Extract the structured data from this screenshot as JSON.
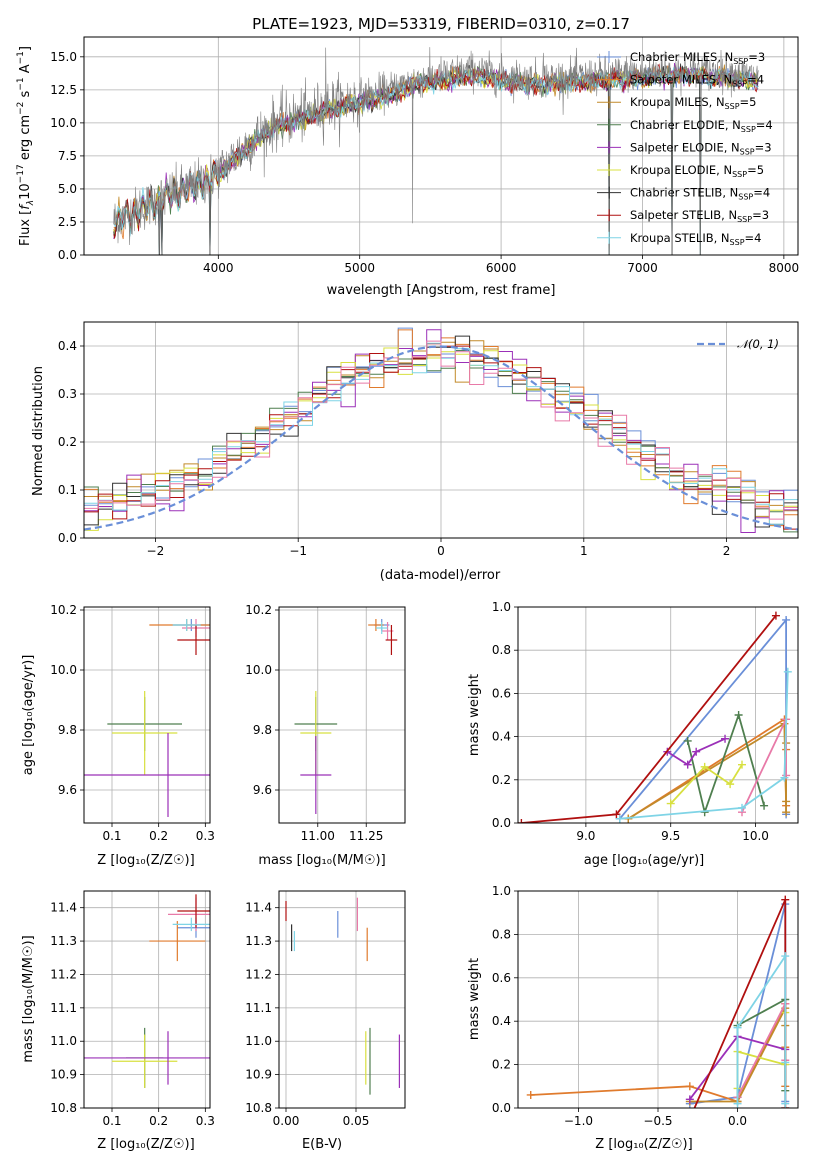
{
  "title": "PLATE=1923, MJD=53319, FIBERID=0310, z=0.17",
  "colors": {
    "series": [
      "#6a8fd8",
      "#e07b2d",
      "#c28a2a",
      "#4f7f4f",
      "#9b30b8",
      "#d8e040",
      "#333333",
      "#b01010",
      "#7fd4e6"
    ],
    "extra_pink": "#e87aa8",
    "data_gray": "#808080",
    "grid": "#b0b0b0",
    "normal_curve": "#6a8fd8"
  },
  "chart_data": [
    {
      "type": "line",
      "name": "spectrum",
      "xlabel": "wavelength [Angstrom, rest frame]",
      "ylabel_parts": [
        "Flux [",
        "f",
        "λ",
        "10",
        "−17",
        " erg cm",
        "−2",
        " s",
        "−1",
        " A",
        "−1",
        "]"
      ],
      "xlim": [
        3050,
        8100
      ],
      "ylim": [
        0,
        16.5
      ],
      "xticks": [
        4000,
        5000,
        6000,
        7000,
        8000
      ],
      "yticks": [
        "0.0",
        "2.5",
        "5.0",
        "7.5",
        "10.0",
        "12.5",
        "15.0"
      ],
      "ytick_values": [
        0,
        2.5,
        5,
        7.5,
        10,
        12.5,
        15
      ],
      "x_range": [
        3260,
        7820
      ],
      "anchors_x": [
        3260,
        3350,
        3500,
        3700,
        3900,
        4000,
        4200,
        4400,
        4600,
        4800,
        5000,
        5200,
        5400,
        5600,
        5800,
        6000,
        6200,
        6400,
        6600,
        6800,
        7000,
        7200,
        7400,
        7600,
        7820
      ],
      "anchors_y": [
        2.6,
        3.0,
        3.8,
        4.8,
        5.6,
        6.3,
        8.3,
        10.0,
        10.6,
        11.4,
        11.9,
        12.4,
        13.3,
        13.6,
        14.0,
        13.6,
        13.3,
        13.4,
        13.5,
        13.7,
        13.8,
        14.0,
        14.0,
        13.8,
        13.5
      ],
      "spikes": [
        [
          3585,
          0
        ],
        [
          3600,
          0
        ],
        [
          3940,
          0
        ],
        [
          4760,
          15.7
        ],
        [
          5375,
          2.4
        ],
        [
          6300,
          15.3
        ],
        [
          6765,
          0
        ],
        [
          7210,
          0
        ],
        [
          7410,
          0
        ]
      ],
      "legend": [
        {
          "label": "Chabrier MILES, N",
          "sub": "SSP",
          "suffix": "=3",
          "color": "#6a8fd8"
        },
        {
          "label": "Salpeter MILES, N",
          "sub": "SSP",
          "suffix": "=4",
          "color": "#e07b2d"
        },
        {
          "label": "Kroupa MILES, N",
          "sub": "SSP",
          "suffix": "=5",
          "color": "#c28a2a"
        },
        {
          "label": "Chabrier ELODIE, N",
          "sub": "SSP",
          "suffix": "=4",
          "color": "#4f7f4f"
        },
        {
          "label": "Salpeter ELODIE, N",
          "sub": "SSP",
          "suffix": "=3",
          "color": "#9b30b8"
        },
        {
          "label": "Kroupa ELODIE, N",
          "sub": "SSP",
          "suffix": "=5",
          "color": "#d8e040"
        },
        {
          "label": "Chabrier STELIB, N",
          "sub": "SSP",
          "suffix": "=4",
          "color": "#333333"
        },
        {
          "label": "Salpeter STELIB, N",
          "sub": "SSP",
          "suffix": "=3",
          "color": "#b01010"
        },
        {
          "label": "Kroupa STELIB, N",
          "sub": "SSP",
          "suffix": "=4",
          "color": "#7fd4e6"
        }
      ]
    },
    {
      "type": "histogram",
      "name": "residuals",
      "xlabel": "(data-model)/error",
      "ylabel": "Normed distribution",
      "xlim": [
        -2.5,
        2.5
      ],
      "ylim": [
        0,
        0.45
      ],
      "xticks": [
        -2,
        -1,
        0,
        1,
        2
      ],
      "xtick_labels": [
        "−2",
        "−1",
        "0",
        "1",
        "2"
      ],
      "yticks": [
        "0.0",
        "0.1",
        "0.2",
        "0.3",
        "0.4"
      ],
      "ytick_values": [
        0,
        0.1,
        0.2,
        0.3,
        0.4
      ],
      "bin_width": 0.1,
      "legend_label": "𝒩(0, 1)"
    },
    {
      "type": "scatter",
      "name": "age-vs-Z",
      "xlabel": "Z [log₁₀(Z/Z☉)]",
      "ylabel": "age  [log₁₀(age/yr)]",
      "xlim": [
        0.04,
        0.31
      ],
      "ylim": [
        9.49,
        10.21
      ],
      "xticks": [
        0.1,
        0.2,
        0.3
      ],
      "xtick_labels": [
        "0.1",
        "0.2",
        "0.3"
      ],
      "yticks": [
        9.6,
        9.8,
        10.0,
        10.2
      ],
      "ytick_labels": [
        "9.6",
        "9.8",
        "10.0",
        "10.2"
      ],
      "points": [
        {
          "x": 0.27,
          "y": 10.15,
          "xerr": 0.04,
          "yerr": 0.02,
          "color": "#6a8fd8"
        },
        {
          "x": 0.26,
          "y": 10.15,
          "xerr": 0.08,
          "yerr": 0.02,
          "color": "#e07b2d"
        },
        {
          "x": 0.28,
          "y": 10.14,
          "xerr": 0.03,
          "yerr": 0.03,
          "color": "#e87aa8"
        },
        {
          "x": 0.28,
          "y": 10.1,
          "xerr": 0.04,
          "yerr": 0.05,
          "color": "#b01010"
        },
        {
          "x": 0.26,
          "y": 10.15,
          "xerr": 0.03,
          "yerr": 0.02,
          "color": "#7fd4e6"
        },
        {
          "x": 0.17,
          "y": 9.82,
          "xerr": 0.08,
          "yerr": 0.09,
          "color": "#4f7f4f"
        },
        {
          "x": 0.17,
          "y": 9.79,
          "xerr": 0.07,
          "yerr": 0.14,
          "color": "#d8e040"
        },
        {
          "x": 0.22,
          "y": 9.65,
          "xerr": 0.18,
          "yerr": 0.14,
          "color": "#9b30b8"
        }
      ]
    },
    {
      "type": "scatter",
      "name": "age-vs-mass",
      "xlabel": "mass [log₁₀(M/M☉)]",
      "ylabel": "",
      "xlim": [
        10.8,
        11.45
      ],
      "ylim": [
        9.49,
        10.21
      ],
      "xticks": [
        11.0,
        11.25
      ],
      "xtick_labels": [
        "11.00",
        "11.25"
      ],
      "yticks": [
        9.6,
        9.8,
        10.0,
        10.2
      ],
      "ytick_labels": [
        "9.6",
        "9.8",
        "10.0",
        "10.2"
      ],
      "points": [
        {
          "x": 11.33,
          "y": 10.15,
          "xerr": 0.04,
          "yerr": 0.02,
          "color": "#6a8fd8"
        },
        {
          "x": 11.3,
          "y": 10.15,
          "xerr": 0.04,
          "yerr": 0.02,
          "color": "#e07b2d"
        },
        {
          "x": 11.36,
          "y": 10.13,
          "xerr": 0.03,
          "yerr": 0.03,
          "color": "#e87aa8"
        },
        {
          "x": 11.38,
          "y": 10.1,
          "xerr": 0.03,
          "yerr": 0.05,
          "color": "#b01010"
        },
        {
          "x": 11.33,
          "y": 10.14,
          "xerr": 0.03,
          "yerr": 0.02,
          "color": "#7fd4e6"
        },
        {
          "x": 10.99,
          "y": 9.82,
          "xerr": 0.11,
          "yerr": 0.09,
          "color": "#4f7f4f"
        },
        {
          "x": 10.99,
          "y": 9.79,
          "xerr": 0.08,
          "yerr": 0.14,
          "color": "#d8e040"
        },
        {
          "x": 10.99,
          "y": 9.65,
          "xerr": 0.08,
          "yerr": 0.13,
          "color": "#9b30b8"
        }
      ]
    },
    {
      "type": "line",
      "name": "mass-weight-vs-age",
      "xlabel": "age  [log₁₀(age/yr)]",
      "ylabel": "mass weight",
      "xlim": [
        8.6,
        10.25
      ],
      "ylim": [
        0,
        1.0
      ],
      "xticks": [
        9.0,
        9.5,
        10.0
      ],
      "xtick_labels": [
        "9.0",
        "9.5",
        "10.0"
      ],
      "yticks": [
        0,
        0.2,
        0.4,
        0.6,
        0.8,
        1.0
      ],
      "ytick_labels": [
        "0.0",
        "0.2",
        "0.4",
        "0.6",
        "0.8",
        "1.0"
      ],
      "series": [
        {
          "color": "#6a8fd8",
          "x": [
            9.2,
            10.18,
            10.18
          ],
          "y": [
            0.02,
            0.94,
            0.04
          ]
        },
        {
          "color": "#e07b2d",
          "x": [
            9.25,
            10.17,
            10.18,
            10.18
          ],
          "y": [
            0.02,
            0.48,
            0.08,
            0.34
          ]
        },
        {
          "color": "#c28a2a",
          "x": [
            9.25,
            10.17,
            10.18,
            10.18,
            10.18
          ],
          "y": [
            0.02,
            0.46,
            0.1,
            0.37,
            0.05
          ]
        },
        {
          "color": "#4f7f4f",
          "x": [
            9.6,
            9.7,
            9.9,
            10.05
          ],
          "y": [
            0.38,
            0.05,
            0.5,
            0.08
          ]
        },
        {
          "color": "#9b30b8",
          "x": [
            9.48,
            9.6,
            9.65,
            9.82
          ],
          "y": [
            0.33,
            0.27,
            0.33,
            0.39
          ]
        },
        {
          "color": "#d8e040",
          "x": [
            9.5,
            9.7,
            9.85,
            9.92
          ],
          "y": [
            0.09,
            0.26,
            0.18,
            0.27
          ]
        },
        {
          "color": "#e87aa8",
          "x": [
            9.92,
            10.18,
            10.18
          ],
          "y": [
            0.05,
            0.48,
            0.22
          ]
        },
        {
          "color": "#b01010",
          "x": [
            8.62,
            9.18,
            10.12
          ],
          "y": [
            0.0,
            0.04,
            0.96
          ]
        },
        {
          "color": "#7fd4e6",
          "x": [
            9.2,
            9.92,
            10.17,
            10.19
          ],
          "y": [
            0.02,
            0.07,
            0.21,
            0.7
          ]
        }
      ]
    },
    {
      "type": "scatter",
      "name": "mass-vs-Z",
      "xlabel": "Z [log₁₀(Z/Z☉)]",
      "ylabel": "mass [log₁₀(M/M☉)]",
      "xlim": [
        0.04,
        0.31
      ],
      "ylim": [
        10.8,
        11.45
      ],
      "xticks": [
        0.1,
        0.2,
        0.3
      ],
      "xtick_labels": [
        "0.1",
        "0.2",
        "0.3"
      ],
      "yticks": [
        10.8,
        10.9,
        11.0,
        11.1,
        11.2,
        11.3,
        11.4
      ],
      "ytick_labels": [
        "10.8",
        "10.9",
        "11.0",
        "11.1",
        "11.2",
        "11.3",
        "11.4"
      ],
      "points": [
        {
          "x": 0.28,
          "y": 11.34,
          "xerr": 0.04,
          "yerr": 0.03,
          "color": "#6a8fd8"
        },
        {
          "x": 0.24,
          "y": 11.3,
          "xerr": 0.06,
          "yerr": 0.06,
          "color": "#e07b2d"
        },
        {
          "x": 0.28,
          "y": 11.38,
          "xerr": 0.06,
          "yerr": 0.05,
          "color": "#e87aa8"
        },
        {
          "x": 0.28,
          "y": 11.39,
          "xerr": 0.04,
          "yerr": 0.05,
          "color": "#b01010"
        },
        {
          "x": 0.27,
          "y": 11.35,
          "xerr": 0.04,
          "yerr": 0.02,
          "color": "#7fd4e6"
        },
        {
          "x": 0.17,
          "y": 10.95,
          "xerr": 0.04,
          "yerr": 0.09,
          "color": "#4f7f4f"
        },
        {
          "x": 0.17,
          "y": 10.94,
          "xerr": 0.07,
          "yerr": 0.08,
          "color": "#d8e040"
        },
        {
          "x": 0.22,
          "y": 10.95,
          "xerr": 0.18,
          "yerr": 0.08,
          "color": "#9b30b8"
        }
      ]
    },
    {
      "type": "scatter",
      "name": "mass-vs-ebv",
      "xlabel": "E(B-V)",
      "ylabel": "",
      "xlim": [
        -0.005,
        0.085
      ],
      "ylim": [
        10.8,
        11.45
      ],
      "xticks": [
        0.0,
        0.05
      ],
      "xtick_labels": [
        "0.00",
        "0.05"
      ],
      "yticks": [
        10.8,
        10.9,
        11.0,
        11.1,
        11.2,
        11.3,
        11.4
      ],
      "ytick_labels": [
        "10.8",
        "10.9",
        "11.0",
        "11.1",
        "11.2",
        "11.3",
        "11.4"
      ],
      "points": [
        {
          "x": 0.0,
          "y": 11.39,
          "xerr": 0.0,
          "yerr": 0.03,
          "color": "#b01010"
        },
        {
          "x": 0.004,
          "y": 11.31,
          "xerr": 0.0,
          "yerr": 0.04,
          "color": "#333333"
        },
        {
          "x": 0.006,
          "y": 11.3,
          "xerr": 0.0,
          "yerr": 0.03,
          "color": "#7fd4e6"
        },
        {
          "x": 0.037,
          "y": 11.35,
          "xerr": 0.0,
          "yerr": 0.04,
          "color": "#6a8fd8"
        },
        {
          "x": 0.051,
          "y": 11.38,
          "xerr": 0.0,
          "yerr": 0.05,
          "color": "#e87aa8"
        },
        {
          "x": 0.058,
          "y": 11.29,
          "xerr": 0.0,
          "yerr": 0.05,
          "color": "#e07b2d"
        },
        {
          "x": 0.057,
          "y": 10.95,
          "xerr": 0.0,
          "yerr": 0.08,
          "color": "#d8e040"
        },
        {
          "x": 0.06,
          "y": 10.94,
          "xerr": 0.0,
          "yerr": 0.1,
          "color": "#4f7f4f"
        },
        {
          "x": 0.081,
          "y": 10.94,
          "xerr": 0.0,
          "yerr": 0.08,
          "color": "#9b30b8"
        }
      ]
    },
    {
      "type": "line",
      "name": "mass-weight-vs-Z",
      "xlabel": "Z [log₁₀(Z/Z☉)]",
      "ylabel": "mass weight",
      "xlim": [
        -1.38,
        0.38
      ],
      "ylim": [
        0,
        1.0
      ],
      "xticks": [
        -1.0,
        -0.5,
        0.0
      ],
      "xtick_labels": [
        "−1.0",
        "−0.5",
        "0.0"
      ],
      "yticks": [
        0,
        0.2,
        0.4,
        0.6,
        0.8,
        1.0
      ],
      "ytick_labels": [
        "0.0",
        "0.2",
        "0.4",
        "0.6",
        "0.8",
        "1.0"
      ],
      "series": [
        {
          "color": "#6a8fd8",
          "x": [
            -0.3,
            0.0,
            0.3,
            0.3
          ],
          "y": [
            0.02,
            0.05,
            0.94,
            0.03
          ]
        },
        {
          "color": "#e07b2d",
          "x": [
            -1.3,
            -0.3,
            0.0,
            0.3,
            0.3,
            0.3
          ],
          "y": [
            0.06,
            0.1,
            0.03,
            0.48,
            0.28,
            0.1
          ]
        },
        {
          "color": "#c28a2a",
          "x": [
            -0.3,
            0.0,
            0.3,
            0.3
          ],
          "y": [
            0.03,
            0.03,
            0.46,
            0.38
          ]
        },
        {
          "color": "#4f7f4f",
          "x": [
            0.0,
            0.0,
            0.3,
            0.3
          ],
          "y": [
            0.05,
            0.38,
            0.5,
            0.08
          ]
        },
        {
          "color": "#9b30b8",
          "x": [
            -0.3,
            0.0,
            0.3
          ],
          "y": [
            0.04,
            0.33,
            0.27
          ]
        },
        {
          "color": "#d8e040",
          "x": [
            0.0,
            0.0,
            0.3,
            0.3
          ],
          "y": [
            0.09,
            0.26,
            0.2,
            0.44
          ]
        },
        {
          "color": "#e87aa8",
          "x": [
            0.0,
            0.3,
            0.3
          ],
          "y": [
            0.05,
            0.48,
            0.22
          ]
        },
        {
          "color": "#b01010",
          "x": [
            -0.3,
            0.3,
            0.3
          ],
          "y": [
            -0.05,
            0.96,
            0.0
          ]
        },
        {
          "color": "#7fd4e6",
          "x": [
            0.0,
            0.0,
            0.3,
            0.3,
            0.3
          ],
          "y": [
            0.02,
            0.37,
            0.7,
            0.21,
            0.02
          ]
        }
      ]
    }
  ]
}
